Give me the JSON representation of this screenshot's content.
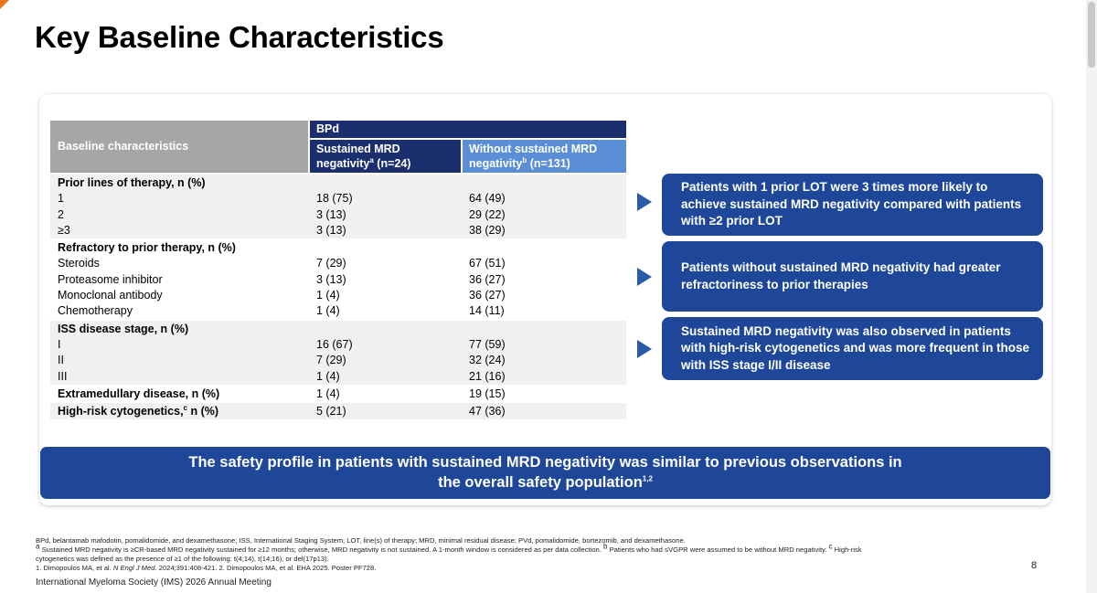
{
  "title": "Key Baseline Characteristics",
  "table": {
    "col_header": "Baseline characteristics",
    "group_header": "BPd",
    "col1": {
      "line1": "Sustained MRD",
      "line2": "negativity",
      "sup": "a",
      "n": " (n=24)"
    },
    "col2": {
      "line1": "Without sustained MRD",
      "line2": "negativity",
      "sup": "b",
      "n": " (n=131)"
    },
    "groups": [
      {
        "rows": [
          {
            "label": "Prior lines of therapy, n (%)",
            "v1": "",
            "v2": "",
            "head": true
          },
          {
            "label": "1",
            "v1": "18 (75)",
            "v2": "64 (49)"
          },
          {
            "label": "2",
            "v1": "3 (13)",
            "v2": "29 (22)"
          },
          {
            "label": "≥3",
            "v1": "3 (13)",
            "v2": "38 (29)"
          }
        ]
      },
      {
        "rows": [
          {
            "label": "Refractory to prior therapy, n (%)",
            "v1": "",
            "v2": "",
            "head": true
          },
          {
            "label": "Steroids",
            "v1": "7 (29)",
            "v2": "67 (51)"
          },
          {
            "label": "Proteasome inhibitor",
            "v1": "3 (13)",
            "v2": "36 (27)"
          },
          {
            "label": "Monoclonal antibody",
            "v1": "1 (4)",
            "v2": "36 (27)"
          },
          {
            "label": "Chemotherapy",
            "v1": "1 (4)",
            "v2": "14 (11)"
          }
        ]
      },
      {
        "rows": [
          {
            "label": "ISS disease stage, n (%)",
            "v1": "",
            "v2": "",
            "head": true
          },
          {
            "label": "I",
            "v1": "16 (67)",
            "v2": "77 (59)"
          },
          {
            "label": "II",
            "v1": "7 (29)",
            "v2": "32 (24)"
          },
          {
            "label": "III",
            "v1": "1 (4)",
            "v2": "21 (16)"
          }
        ]
      },
      {
        "rows": [
          {
            "label": "Extramedullary disease, n (%)",
            "v1": "1 (4)",
            "v2": "19 (15)",
            "head": true
          }
        ]
      },
      {
        "rows": [
          {
            "label": "High-risk cytogenetics,",
            "sup": "c",
            "label_tail": " n (%)",
            "v1": "5 (21)",
            "v2": "47 (36)",
            "head": true
          }
        ]
      }
    ]
  },
  "callouts": [
    {
      "text": "Patients with 1 prior LOT were 3 times more likely to achieve sustained MRD negativity compared with patients with ≥2 prior LOT"
    },
    {
      "text": "Patients without sustained MRD negativity had greater refractoriness to prior therapies"
    },
    {
      "text": "Sustained MRD negativity was also observed in patients with high-risk cytogenetics and was more frequent in those with ISS stage I/II disease"
    }
  ],
  "banner": {
    "line1": "The safety profile in patients with sustained MRD negativity was similar to previous observations in",
    "line2": "the overall safety population",
    "sup": "1,2"
  },
  "footnotes": {
    "abbrev": "BPd, belantamab mafodotin, pomalidomide, and dexamethasone; ISS, International Staging System; LOT, line(s) of therapy; MRD, minimal residual disease; PVd, pomalidomide, bortezomib, and dexamethasone.",
    "note_a_sup": "a",
    "note_a": " Sustained MRD negativity is ≥CR-based MRD negativity sustained for ≥12 months; otherwise, MRD negativity is not sustained. A 1-month window is considered as per data collection.",
    "note_b_sup": "b",
    "note_b": " Patients who had ≤VGPR were assumed to be without MRD negativity.",
    "note_c_sup": "c",
    "note_c_start": " High-risk",
    "note_c_end": "cytogenetics was defined as the presence of ≥1 of the following: t(4;14), t(14;16), or del(17p13).",
    "ref1": "1. Dimopoulos MA, et al. ",
    "ref1_journal": "N Engl J Med",
    "ref1_tail": ". 2024;391:408-421. 2. Dimopoulos MA, et al. EHA 2025. Poster PF728."
  },
  "meeting": "International Myeloma Society (IMS) 2026 Annual Meeting",
  "page_number": "8"
}
